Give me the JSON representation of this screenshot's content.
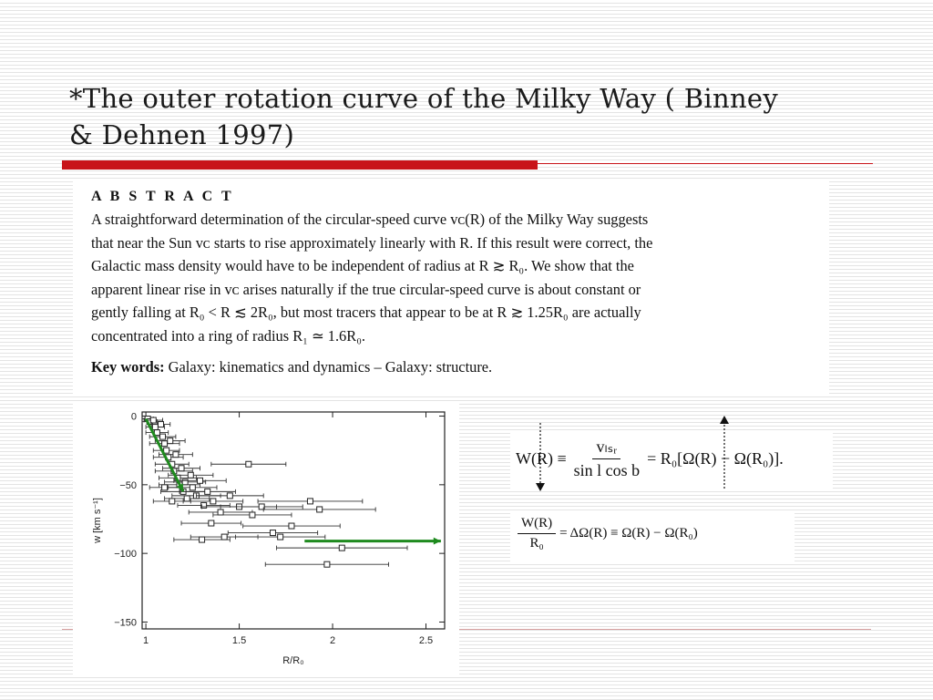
{
  "slide": {
    "title_line1": "*The outer rotation curve of the Milky Way ( Binney",
    "title_line2": "& Dehnen 1997)"
  },
  "abstract": {
    "heading": "A B S T R A C T",
    "lines": [
      "A straightforward determination of the circular-speed curve vᴄ(R) of the Milky Way suggests",
      "that near the Sun vᴄ starts to rise approximately linearly with R. If this result were correct, the",
      "Galactic mass density would have to be independent of radius at R ≳ R₀. We show that the",
      "apparent linear rise in vᴄ arises naturally if the true circular-speed curve is about constant or",
      "gently falling at R₀ < R ≲ 2R₀, but most tracers that appear to be at R ≳ 1.25R₀ are actually",
      "concentrated into a ring of radius R₁ ≃ 1.6R₀."
    ],
    "keywords_label": "Key words:",
    "keywords_text": " Galaxy: kinematics and dynamics – Galaxy: structure."
  },
  "equations": {
    "eq1": {
      "lhs": "W(R) ≡",
      "frac_num": "vₗₛᵣ",
      "frac_den": "sin l cos b",
      "rhs": "= R₀[Ω(R) − Ω(R₀)]."
    },
    "eq2": {
      "frac_num": "W(R)",
      "frac_den": "R₀",
      "rhs": "= ΔΩ(R) ≡ Ω(R) − Ω(R₀)"
    }
  },
  "chart_data": {
    "type": "scatter",
    "title": "",
    "xlabel": "R/R₀",
    "ylabel": "w  [km s⁻¹]",
    "xlim": [
      0.98,
      2.6
    ],
    "ylim": [
      -155,
      3
    ],
    "xticks": [
      1,
      1.5,
      2,
      2.5
    ],
    "xtick_labels": [
      "1",
      "1.5",
      "2",
      "2.5"
    ],
    "yticks": [
      0,
      -50,
      -100,
      -150
    ],
    "ytick_labels": [
      "0",
      "−50",
      "−100",
      "−150"
    ],
    "grid": false,
    "series": [
      {
        "marker": "open-square",
        "points": [
          {
            "x": 1.01,
            "y": -2,
            "xerr": 0.03
          },
          {
            "x": 1.02,
            "y": -4,
            "xerr": 0.04
          },
          {
            "x": 1.04,
            "y": -3,
            "xerr": 0.05
          },
          {
            "x": 1.05,
            "y": -8,
            "xerr": 0.05
          },
          {
            "x": 1.06,
            "y": -12,
            "xerr": 0.06
          },
          {
            "x": 1.08,
            "y": -6,
            "xerr": 0.05
          },
          {
            "x": 1.09,
            "y": -15,
            "xerr": 0.07
          },
          {
            "x": 1.1,
            "y": -20,
            "xerr": 0.08
          },
          {
            "x": 1.11,
            "y": -25,
            "xerr": 0.07
          },
          {
            "x": 1.12,
            "y": -30,
            "xerr": 0.08
          },
          {
            "x": 1.13,
            "y": -18,
            "xerr": 0.08
          },
          {
            "x": 1.14,
            "y": -35,
            "xerr": 0.09
          },
          {
            "x": 1.15,
            "y": -40,
            "xerr": 0.1
          },
          {
            "x": 1.16,
            "y": -28,
            "xerr": 0.09
          },
          {
            "x": 1.17,
            "y": -45,
            "xerr": 0.1
          },
          {
            "x": 1.18,
            "y": -50,
            "xerr": 0.11
          },
          {
            "x": 1.19,
            "y": -38,
            "xerr": 0.1
          },
          {
            "x": 1.2,
            "y": -55,
            "xerr": 0.12
          },
          {
            "x": 1.21,
            "y": -48,
            "xerr": 0.11
          },
          {
            "x": 1.22,
            "y": -60,
            "xerr": 0.12
          },
          {
            "x": 1.24,
            "y": -43,
            "xerr": 0.12
          },
          {
            "x": 1.25,
            "y": -52,
            "xerr": 0.13
          },
          {
            "x": 1.27,
            "y": -58,
            "xerr": 0.13
          },
          {
            "x": 1.29,
            "y": -47,
            "xerr": 0.14
          },
          {
            "x": 1.31,
            "y": -65,
            "xerr": 0.14
          },
          {
            "x": 1.33,
            "y": -55,
            "xerr": 0.15
          },
          {
            "x": 1.36,
            "y": -62,
            "xerr": 0.16
          },
          {
            "x": 1.4,
            "y": -70,
            "xerr": 0.17
          },
          {
            "x": 1.45,
            "y": -58,
            "xerr": 0.18
          },
          {
            "x": 1.5,
            "y": -66,
            "xerr": 0.2
          },
          {
            "x": 1.55,
            "y": -35,
            "xerr": 0.2
          },
          {
            "x": 1.57,
            "y": -72,
            "xerr": 0.21
          },
          {
            "x": 1.62,
            "y": -66,
            "xerr": 0.22
          },
          {
            "x": 1.68,
            "y": -85,
            "xerr": 0.24
          },
          {
            "x": 1.72,
            "y": -88,
            "xerr": 0.24
          },
          {
            "x": 1.78,
            "y": -80,
            "xerr": 0.26
          },
          {
            "x": 1.88,
            "y": -62,
            "xerr": 0.28
          },
          {
            "x": 1.93,
            "y": -68,
            "xerr": 0.3
          },
          {
            "x": 2.05,
            "y": -96,
            "xerr": 0.35
          },
          {
            "x": 1.97,
            "y": -108,
            "xerr": 0.33
          },
          {
            "x": 1.3,
            "y": -90,
            "xerr": 0.15
          },
          {
            "x": 1.42,
            "y": -88,
            "xerr": 0.18
          },
          {
            "x": 1.1,
            "y": -52,
            "xerr": 0.08
          },
          {
            "x": 1.14,
            "y": -62,
            "xerr": 0.1
          },
          {
            "x": 1.35,
            "y": -78,
            "xerr": 0.16
          }
        ]
      }
    ],
    "annotations": [
      {
        "kind": "green-arrow",
        "x1": 1.0,
        "y1": -2,
        "x2": 1.2,
        "y2": -55
      },
      {
        "kind": "green-arrow",
        "x1": 1.85,
        "y1": -91,
        "x2": 2.58,
        "y2": -91
      }
    ]
  },
  "colors": {
    "title_rule": "#c8141a",
    "annotation_arrow": "#1e8a1e"
  }
}
